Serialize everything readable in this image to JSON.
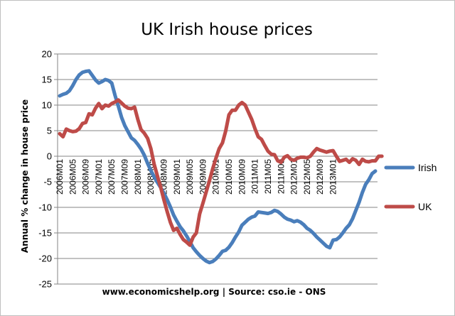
{
  "chart_data": {
    "type": "line",
    "title": "UK Irish house prices",
    "xlabel": "www.economicshelp.org | Source: cso.ie - ONS",
    "ylabel": "Annual % change in house price",
    "ylim": [
      -25,
      20
    ],
    "yticks": [
      -25,
      -20,
      -15,
      -10,
      -5,
      0,
      5,
      10,
      15,
      20
    ],
    "grid": "horizontal",
    "legend_position": "right",
    "x_tick_labels": [
      "2006M01",
      "2006M05",
      "2006M09",
      "2007M01",
      "2007M05",
      "2007M09",
      "2008M01",
      "2008M05",
      "2008M09",
      "2009M01",
      "2009M05",
      "2009M09",
      "2010M01",
      "2010M05",
      "2010M09",
      "2011M01",
      "2011M05",
      "2011M09",
      "2012M01",
      "2012M05",
      "2012M09",
      "2013M01"
    ],
    "x_tick_every": 4,
    "series": [
      {
        "name": "Irish",
        "color": "#4a7ebb",
        "values": [
          11.8,
          12.1,
          12.3,
          12.8,
          13.8,
          15.0,
          15.9,
          16.4,
          16.6,
          16.7,
          15.8,
          14.9,
          14.3,
          14.6,
          15.0,
          14.8,
          14.3,
          11.9,
          9.8,
          7.6,
          6.0,
          4.8,
          3.6,
          3.1,
          2.3,
          1.4,
          0.2,
          -1.4,
          -2.8,
          -4.0,
          -5.1,
          -6.1,
          -7.2,
          -8.5,
          -9.9,
          -11.5,
          -12.7,
          -13.8,
          -14.6,
          -15.6,
          -16.7,
          -17.9,
          -18.7,
          -19.4,
          -20.0,
          -20.5,
          -20.8,
          -20.6,
          -20.1,
          -19.4,
          -18.6,
          -18.4,
          -17.8,
          -16.9,
          -15.8,
          -14.8,
          -13.5,
          -12.9,
          -12.3,
          -11.9,
          -11.7,
          -10.9,
          -11.0,
          -11.1,
          -11.2,
          -11.0,
          -10.6,
          -10.8,
          -11.3,
          -11.9,
          -12.3,
          -12.5,
          -12.8,
          -12.6,
          -12.9,
          -13.4,
          -14.1,
          -14.5,
          -15.1,
          -15.8,
          -16.4,
          -17.0,
          -17.6,
          -17.9,
          -16.4,
          -16.3,
          -15.8,
          -15.0,
          -14.1,
          -13.4,
          -12.2,
          -10.6,
          -9.0,
          -7.1,
          -5.5,
          -4.6,
          -3.4,
          -2.9
        ]
      },
      {
        "name": "UK",
        "color": "#be4b48",
        "values": [
          4.4,
          3.8,
          5.3,
          5.0,
          4.8,
          4.9,
          5.4,
          6.4,
          6.6,
          8.3,
          8.1,
          9.4,
          10.3,
          9.3,
          10.0,
          9.8,
          10.3,
          10.6,
          11.0,
          10.4,
          9.8,
          9.4,
          9.3,
          9.6,
          7.2,
          5.2,
          4.5,
          3.5,
          1.5,
          -1.5,
          -3.8,
          -6.0,
          -8.5,
          -10.8,
          -12.9,
          -14.5,
          -14.1,
          -15.3,
          -16.3,
          -16.8,
          -17.4,
          -15.8,
          -15.0,
          -11.3,
          -9.2,
          -7.0,
          -4.8,
          -2.5,
          -0.4,
          1.5,
          2.6,
          4.9,
          8.1,
          9.0,
          9.0,
          10.0,
          10.5,
          10.0,
          8.6,
          7.2,
          5.4,
          3.8,
          3.3,
          2.1,
          1.0,
          0.4,
          0.3,
          -0.9,
          -1.2,
          -0.2,
          0.1,
          -0.6,
          -0.8,
          -0.4,
          -0.2,
          -0.2,
          -0.3,
          0.0,
          0.8,
          1.5,
          1.2,
          1.0,
          0.8,
          1.0,
          1.1,
          0.0,
          -1.0,
          -0.8,
          -0.6,
          -1.2,
          -0.5,
          -0.8,
          -1.6,
          -0.6,
          -1.0,
          -1.1,
          -0.9,
          -0.9,
          0.0,
          0.0
        ]
      }
    ]
  }
}
